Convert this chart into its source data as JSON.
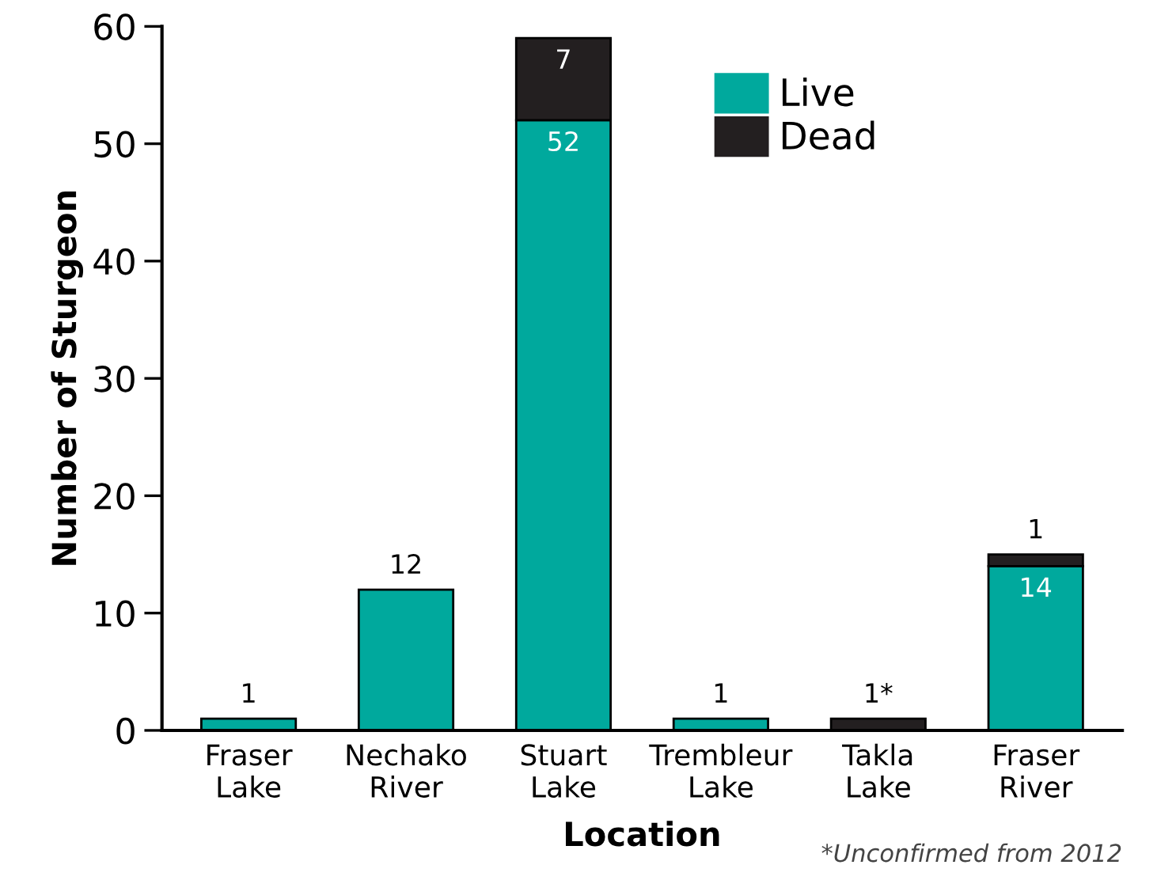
{
  "chart_data": {
    "type": "bar",
    "stacked": true,
    "xlabel": "Location",
    "ylabel": "Number of Sturgeon",
    "categories": [
      "Fraser\nLake",
      "Nechako\nRiver",
      "Stuart\nLake",
      "Trembleur\nLake",
      "Takla\nLake",
      "Fraser\nRiver"
    ],
    "series": [
      {
        "name": "Live",
        "color": "#00a99d",
        "values": [
          1,
          12,
          52,
          1,
          0,
          14
        ],
        "value_labels": [
          "1",
          "12",
          "52",
          "1",
          null,
          "14"
        ]
      },
      {
        "name": "Dead",
        "color": "#231f20",
        "values": [
          0,
          0,
          7,
          0,
          1,
          1
        ],
        "value_labels": [
          null,
          null,
          "7",
          null,
          "1*",
          "1"
        ]
      }
    ],
    "ylim": [
      0,
      60
    ],
    "yticks": [
      0,
      10,
      20,
      30,
      40,
      50,
      60
    ],
    "grid": false,
    "legend": "top right",
    "annotations": [
      "*Unconfirmed from 2012"
    ]
  }
}
